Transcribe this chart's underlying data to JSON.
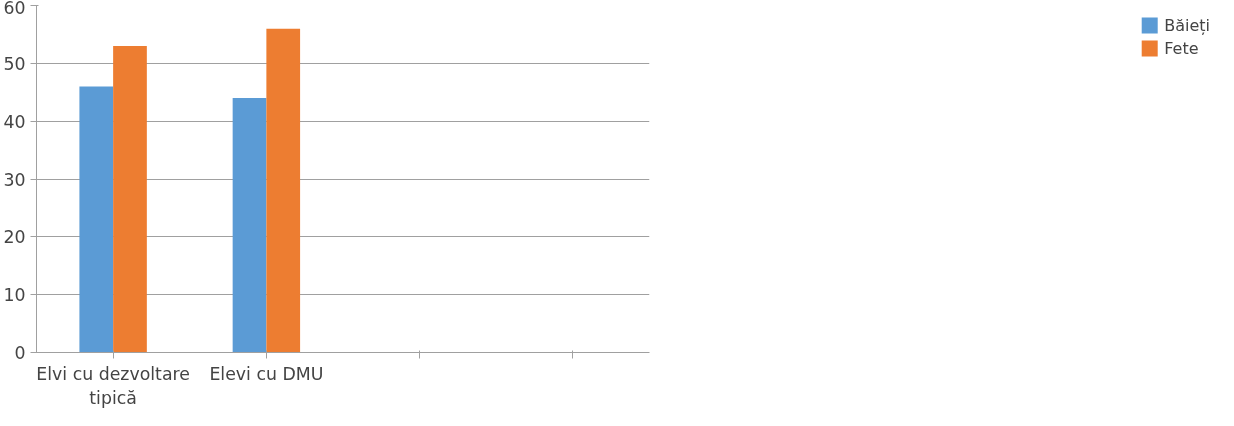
{
  "chart_data": {
    "type": "bar",
    "categories": [
      "Elvi cu dezvoltare tipică",
      "Elevi cu DMU",
      null,
      null
    ],
    "series": [
      {
        "name": "Băieți",
        "color": "#5b9bd5",
        "values": [
          46,
          44,
          null,
          null
        ]
      },
      {
        "name": "Fete",
        "color": "#ed7d31",
        "values": [
          53,
          56,
          null,
          null
        ]
      }
    ],
    "ylim": [
      0,
      60
    ],
    "yticks": [
      0,
      10,
      20,
      30,
      40,
      50,
      60
    ],
    "grid": "y",
    "legend": "right"
  }
}
